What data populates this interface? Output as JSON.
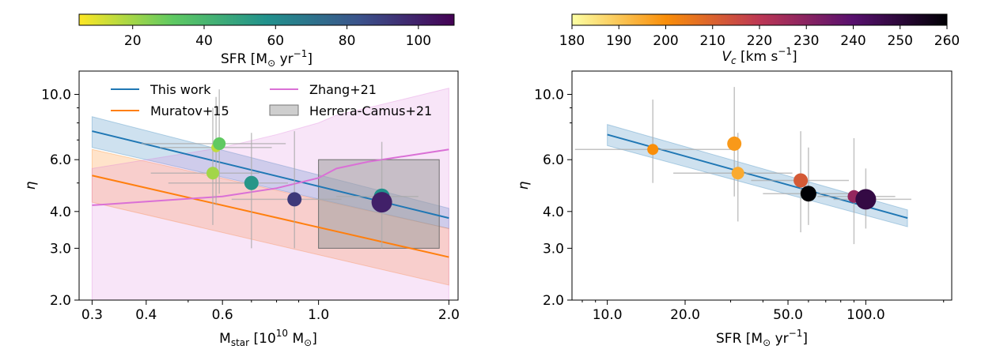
{
  "chart_data": [
    {
      "type": "scatter",
      "panel": "left",
      "xlabel": "M_star [10^10 M_sun]",
      "ylabel": "η",
      "x_scale": "log",
      "y_scale": "log",
      "xlim": [
        0.28,
        2.1
      ],
      "ylim": [
        2.0,
        12.0
      ],
      "x_ticks": [
        {
          "v": 0.3,
          "label": "0.3"
        },
        {
          "v": 0.4,
          "label": "0.4"
        },
        {
          "v": 0.6,
          "label": "0.6"
        },
        {
          "v": 1.0,
          "label": "1.0"
        },
        {
          "v": 2.0,
          "label": "2.0"
        }
      ],
      "y_ticks": [
        {
          "v": 2.0,
          "label": "2.0"
        },
        {
          "v": 3.0,
          "label": "3.0"
        },
        {
          "v": 4.0,
          "label": "4.0"
        },
        {
          "v": 6.0,
          "label": "6.0"
        },
        {
          "v": 10.0,
          "label": "10.0"
        }
      ],
      "legend": {
        "placement": "top",
        "entries": [
          {
            "label": "This work",
            "color": "#1f77b4",
            "kind": "line"
          },
          {
            "label": "Zhang+21",
            "color": "#da70d6",
            "kind": "line"
          },
          {
            "label": "Muratov+15",
            "color": "#ff7f0e",
            "kind": "line"
          },
          {
            "label": "Herrera-Camus+21",
            "color": "#9e9e9e",
            "kind": "box"
          }
        ]
      },
      "colorbar": {
        "label": "SFR [M_sun yr^-1]",
        "colormap": "viridis_r",
        "range": [
          5,
          110
        ],
        "ticks": [
          "20",
          "40",
          "60",
          "80",
          "100"
        ]
      },
      "fits": [
        {
          "name": "This work",
          "color": "#1f77b4",
          "x": [
            0.3,
            2.0
          ],
          "y": [
            7.5,
            3.8
          ],
          "band_low": [
            6.6,
            3.5
          ],
          "band_high": [
            8.4,
            4.1
          ]
        },
        {
          "name": "Muratov+15",
          "color": "#ff7f0e",
          "x": [
            0.3,
            2.0
          ],
          "y": [
            5.3,
            2.8
          ],
          "band_low": [
            4.3,
            2.25
          ],
          "band_high": [
            6.5,
            3.5
          ]
        },
        {
          "name": "Zhang+21",
          "color": "#da70d6",
          "x": [
            0.3,
            0.6,
            0.8,
            1.0,
            1.1,
            1.3,
            2.0
          ],
          "y": [
            4.2,
            4.5,
            4.8,
            5.2,
            5.6,
            5.9,
            6.5
          ],
          "band_low": [
            2.0,
            2.0,
            2.0,
            2.0,
            2.0,
            2.0,
            2.0
          ],
          "band_high": [
            5.6,
            6.6,
            7.3,
            8.0,
            8.5,
            9.0,
            10.5
          ]
        }
      ],
      "region": {
        "name": "Herrera-Camus+21",
        "color": "#9e9e9e",
        "x": [
          1.0,
          1.9
        ],
        "y": [
          3.0,
          6.0
        ]
      },
      "points": [
        {
          "x": 0.57,
          "y": 5.4,
          "sfr": 20,
          "xerr": [
            0.16,
            0.16
          ],
          "yerr": [
            1.8,
            3.6
          ],
          "size": 8
        },
        {
          "x": 0.58,
          "y": 6.6,
          "sfr": 15,
          "xerr": [
            0.15,
            0.2
          ],
          "yerr": [
            2.4,
            3.2
          ],
          "size": 6
        },
        {
          "x": 0.59,
          "y": 6.8,
          "sfr": 31,
          "xerr": [
            0.2,
            0.25
          ],
          "yerr": [
            2.2,
            3.6
          ],
          "size": 8
        },
        {
          "x": 0.7,
          "y": 5.0,
          "sfr": 55,
          "xerr": [
            0.25,
            0.15
          ],
          "yerr": [
            2.0,
            2.4
          ],
          "size": 9
        },
        {
          "x": 0.88,
          "y": 4.4,
          "sfr": 92,
          "xerr": [
            0.25,
            0.25
          ],
          "yerr": [
            1.4,
            3.1
          ],
          "size": 9
        },
        {
          "x": 1.4,
          "y": 4.5,
          "sfr": 58,
          "xerr": [
            0.3,
            0.3
          ],
          "yerr": [
            1.5,
            2.4
          ],
          "size": 10
        },
        {
          "x": 1.4,
          "y": 4.3,
          "sfr": 100,
          "xerr": [
            0.0,
            0.0
          ],
          "yerr": [
            0.0,
            0.0
          ],
          "size": 13
        }
      ]
    },
    {
      "type": "scatter",
      "panel": "right",
      "xlabel": "SFR [M_sun yr^-1]",
      "ylabel": "η",
      "x_scale": "log",
      "y_scale": "log",
      "xlim": [
        7.3,
        215
      ],
      "ylim": [
        2.0,
        12.0
      ],
      "x_ticks": [
        {
          "v": 10,
          "label": "10.0"
        },
        {
          "v": 20,
          "label": "20.0"
        },
        {
          "v": 50,
          "label": "50.0"
        },
        {
          "v": 100,
          "label": "100.0"
        }
      ],
      "y_ticks": [
        {
          "v": 2.0,
          "label": "2.0"
        },
        {
          "v": 3.0,
          "label": "3.0"
        },
        {
          "v": 4.0,
          "label": "4.0"
        },
        {
          "v": 6.0,
          "label": "6.0"
        },
        {
          "v": 10.0,
          "label": "10.0"
        }
      ],
      "colorbar": {
        "label": "V_c [km s^-1]",
        "colormap": "inferno_r",
        "range": [
          180,
          260
        ],
        "ticks": [
          "180",
          "190",
          "200",
          "210",
          "220",
          "230",
          "240",
          "250",
          "260"
        ]
      },
      "fits": [
        {
          "name": "This work",
          "color": "#1f77b4",
          "x": [
            10,
            145
          ],
          "y": [
            7.3,
            3.8
          ],
          "band_low": [
            6.7,
            3.55
          ],
          "band_high": [
            7.9,
            4.05
          ]
        }
      ],
      "points": [
        {
          "x": 15,
          "y": 6.5,
          "vc": 200,
          "xerr": [
            7.5,
            15
          ],
          "yerr": [
            1.5,
            3.1
          ],
          "size": 7
        },
        {
          "x": 31,
          "y": 6.8,
          "vc": 198,
          "xerr": [
            0,
            0
          ],
          "yerr": [
            2.3,
            3.8
          ],
          "size": 9
        },
        {
          "x": 32,
          "y": 5.4,
          "vc": 195,
          "xerr": [
            14,
            20
          ],
          "yerr": [
            1.7,
            2.0
          ],
          "size": 8
        },
        {
          "x": 56,
          "y": 5.1,
          "vc": 212,
          "xerr": [
            20,
            30
          ],
          "yerr": [
            1.7,
            2.4
          ],
          "size": 9
        },
        {
          "x": 60,
          "y": 4.6,
          "vc": 260,
          "xerr": [
            20,
            30
          ],
          "yerr": [
            1.0,
            2.0
          ],
          "size": 10
        },
        {
          "x": 90,
          "y": 4.5,
          "vc": 228,
          "xerr": [
            25,
            40
          ],
          "yerr": [
            1.4,
            2.6
          ],
          "size": 8
        },
        {
          "x": 100,
          "y": 4.4,
          "vc": 248,
          "xerr": [
            25,
            50
          ],
          "yerr": [
            0.9,
            1.2
          ],
          "size": 13
        }
      ]
    }
  ]
}
